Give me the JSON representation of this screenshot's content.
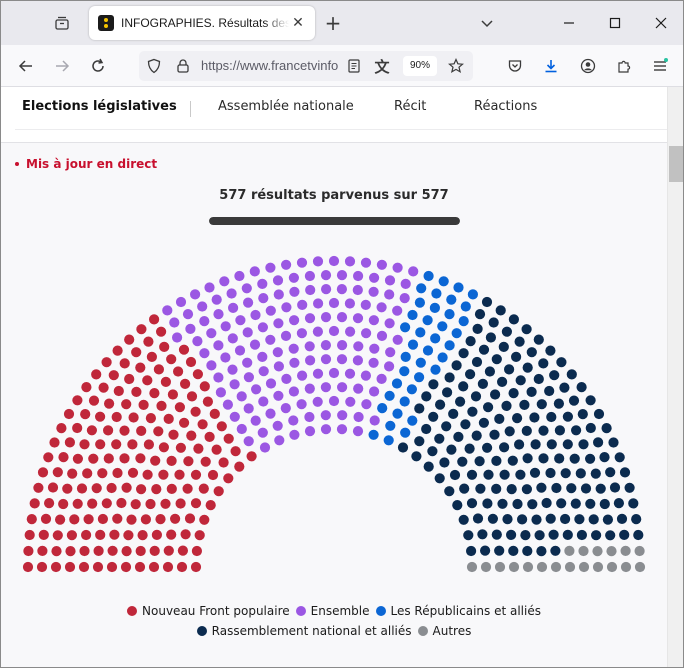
{
  "browser": {
    "tab_title": "INFOGRAPHIES. Résultats des élections",
    "url": "https://www.francetvinfo.fr",
    "zoom": "90%"
  },
  "subnav": {
    "items": [
      "Elections législatives",
      "Assemblée nationale",
      "Récit",
      "Réactions"
    ]
  },
  "live_label": "Mis à jour en direct",
  "results_label": "577 résultats parvenus sur 577",
  "progress_fraction": 1.0,
  "chart_data": {
    "type": "hemicycle",
    "total_seats": 577,
    "series": [
      {
        "name": "Nouveau Front populaire",
        "color": "#c0273a",
        "seats": 180
      },
      {
        "name": "Ensemble",
        "color": "#9b57e3",
        "seats": 159
      },
      {
        "name": "Les Républicains et alliés",
        "color": "#0b66d4",
        "seats": 39
      },
      {
        "name": "Rassemblement national et alliés",
        "color": "#0b2b4f",
        "seats": 180
      },
      {
        "name": "Autres",
        "color": "#8a8d91",
        "seats": 19
      }
    ]
  },
  "legend": {
    "rows": [
      [
        0,
        1,
        2
      ],
      [
        3,
        4
      ]
    ]
  },
  "colors": {
    "live": "#c8102e",
    "progress": "#3a3a3a"
  },
  "icons": {
    "tab_overview": "tab-overview-icon",
    "back": "back-arrow-icon",
    "forward": "forward-arrow-icon",
    "reload": "reload-icon",
    "shield": "tracking-protection-shield-icon",
    "lock": "lock-icon",
    "reader": "reader-view-icon",
    "translate": "translate-icon",
    "bookmark": "star-icon",
    "pocket": "pocket-icon",
    "downloads": "download-icon",
    "account": "account-icon",
    "extensions": "extensions-puzzle-icon",
    "menu": "hamburger-menu-icon"
  }
}
